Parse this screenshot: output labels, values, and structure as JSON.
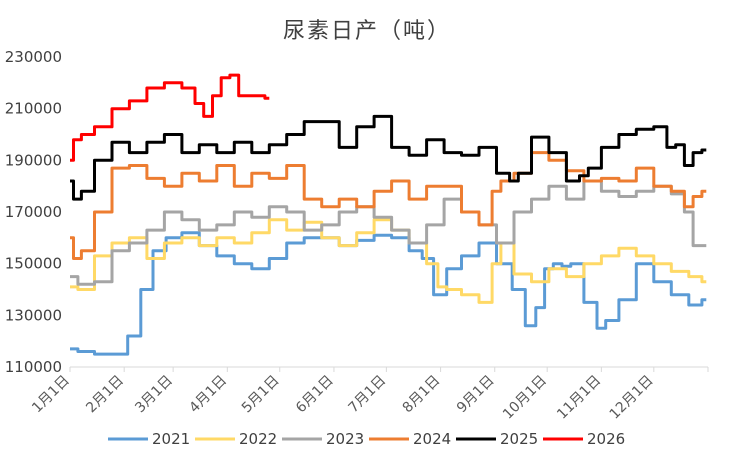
{
  "chart_data": {
    "type": "line",
    "title": "尿素日产（吨）",
    "xlabel": "",
    "ylabel": "",
    "ylim": [
      110000,
      230000
    ],
    "yticks": [
      110000,
      130000,
      150000,
      170000,
      190000,
      210000,
      230000
    ],
    "ytick_labels": [
      "110000",
      "130000",
      "150000",
      "170000",
      "190000",
      "210000",
      "230000"
    ],
    "xtick_labels": [
      "1月1日",
      "2月1日",
      "3月1日",
      "4月1日",
      "5月1日",
      "6月1日",
      "7月1日",
      "8月1日",
      "9月1日",
      "10月1日",
      "11月1日",
      "12月1日"
    ],
    "x_unit": "day_of_year",
    "xtick_days": [
      1,
      32,
      60,
      91,
      121,
      152,
      182,
      213,
      244,
      274,
      305,
      335
    ],
    "xlim": [
      1,
      366
    ],
    "grid": false,
    "legend_position": "bottom",
    "series": [
      {
        "name": "2021",
        "color": "#5b9bd5",
        "x": [
          1,
          10,
          20,
          30,
          38,
          45,
          52,
          60,
          70,
          80,
          90,
          100,
          110,
          120,
          130,
          140,
          150,
          160,
          170,
          180,
          190,
          200,
          205,
          213,
          220,
          230,
          240,
          250,
          258,
          265,
          270,
          275,
          280,
          285,
          290,
          300,
          305,
          310,
          320,
          330,
          340,
          350,
          360,
          365
        ],
        "y": [
          117000,
          116000,
          115000,
          115000,
          122000,
          140000,
          155000,
          160000,
          162000,
          157000,
          153000,
          150000,
          148000,
          152000,
          158000,
          160000,
          160000,
          157000,
          159000,
          161000,
          160000,
          155000,
          152000,
          138000,
          148000,
          153000,
          158000,
          150000,
          140000,
          126000,
          133000,
          148000,
          150000,
          149000,
          150000,
          135000,
          125000,
          128000,
          136000,
          150000,
          143000,
          138000,
          134000,
          136000
        ]
      },
      {
        "name": "2022",
        "color": "#ffd966",
        "x": [
          1,
          10,
          20,
          30,
          40,
          50,
          60,
          70,
          80,
          90,
          100,
          110,
          120,
          130,
          140,
          150,
          160,
          170,
          180,
          190,
          200,
          210,
          213,
          220,
          230,
          240,
          245,
          250,
          260,
          270,
          280,
          290,
          300,
          310,
          320,
          330,
          340,
          350,
          360,
          365
        ],
        "y": [
          141000,
          140000,
          153000,
          158000,
          160000,
          152000,
          158000,
          160000,
          157000,
          160000,
          158000,
          162000,
          167000,
          163000,
          166000,
          160000,
          157000,
          162000,
          167000,
          163000,
          158000,
          150000,
          141000,
          140000,
          138000,
          135000,
          150000,
          158000,
          146000,
          143000,
          148000,
          145000,
          150000,
          153000,
          156000,
          153000,
          150000,
          147000,
          145000,
          143000
        ]
      },
      {
        "name": "2023",
        "color": "#a5a5a5",
        "x": [
          1,
          10,
          20,
          30,
          40,
          50,
          60,
          70,
          80,
          90,
          100,
          110,
          120,
          130,
          140,
          150,
          160,
          170,
          180,
          190,
          200,
          210,
          220,
          230,
          240,
          250,
          260,
          270,
          280,
          290,
          300,
          310,
          320,
          330,
          340,
          350,
          355,
          360,
          365
        ],
        "y": [
          145000,
          142000,
          143000,
          155000,
          158000,
          163000,
          170000,
          167000,
          163000,
          165000,
          170000,
          168000,
          172000,
          170000,
          163000,
          165000,
          170000,
          172000,
          168000,
          163000,
          158000,
          165000,
          175000,
          170000,
          165000,
          158000,
          170000,
          175000,
          180000,
          175000,
          182000,
          178000,
          176000,
          178000,
          180000,
          177000,
          170000,
          157000,
          157000
        ]
      },
      {
        "name": "2024",
        "color": "#ed7d31",
        "x": [
          1,
          5,
          10,
          20,
          30,
          40,
          50,
          60,
          70,
          80,
          90,
          100,
          110,
          120,
          130,
          140,
          150,
          160,
          170,
          180,
          190,
          200,
          210,
          220,
          230,
          240,
          245,
          250,
          260,
          270,
          280,
          290,
          300,
          310,
          320,
          330,
          340,
          350,
          355,
          360,
          365
        ],
        "y": [
          160000,
          152000,
          155000,
          170000,
          187000,
          188000,
          183000,
          180000,
          185000,
          182000,
          188000,
          180000,
          185000,
          183000,
          188000,
          175000,
          172000,
          175000,
          172000,
          178000,
          182000,
          175000,
          180000,
          180000,
          170000,
          165000,
          178000,
          182000,
          185000,
          193000,
          190000,
          186000,
          182000,
          183000,
          182000,
          187000,
          180000,
          178000,
          172000,
          176000,
          178000
        ]
      },
      {
        "name": "2025",
        "color": "#000000",
        "x": [
          1,
          5,
          10,
          20,
          30,
          40,
          50,
          60,
          70,
          80,
          90,
          100,
          110,
          120,
          130,
          140,
          150,
          160,
          170,
          180,
          190,
          200,
          210,
          220,
          230,
          240,
          250,
          255,
          260,
          270,
          280,
          290,
          295,
          300,
          310,
          320,
          330,
          340,
          345,
          350,
          355,
          360,
          365
        ],
        "y": [
          182000,
          175000,
          178000,
          190000,
          197000,
          193000,
          197000,
          200000,
          193000,
          196000,
          193000,
          197000,
          193000,
          196000,
          200000,
          205000,
          205000,
          195000,
          203000,
          207000,
          195000,
          192000,
          198000,
          193000,
          192000,
          195000,
          185000,
          182000,
          185000,
          199000,
          193000,
          182000,
          184000,
          187000,
          195000,
          200000,
          202000,
          203000,
          195000,
          196000,
          188000,
          193000,
          194000
        ]
      },
      {
        "name": "2026",
        "color": "#ff0000",
        "x": [
          1,
          5,
          10,
          20,
          30,
          40,
          50,
          60,
          70,
          75,
          80,
          85,
          90,
          95,
          100,
          110,
          115
        ],
        "y": [
          190000,
          198000,
          200000,
          203000,
          210000,
          213000,
          218000,
          220000,
          218000,
          212000,
          207000,
          215000,
          222000,
          223000,
          215000,
          215000,
          214000
        ]
      }
    ]
  }
}
